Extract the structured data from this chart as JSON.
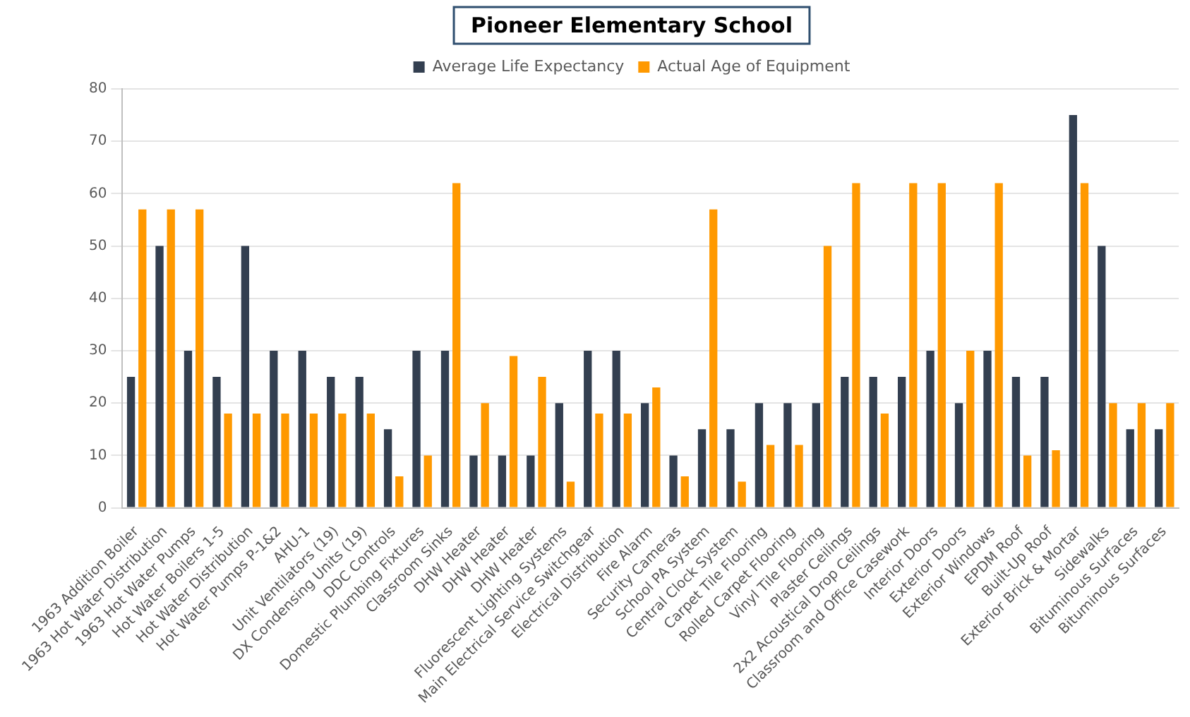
{
  "chart_data": {
    "type": "bar",
    "title": "Pioneer Elementary School",
    "categories": [
      "1963 Addition Boiler",
      "1963 Hot Water Distribution",
      "1963 Hot Water Pumps",
      "Hot Water Boilers 1-5",
      "Hot Water Distribution",
      "Hot Water Pumps P-1&2",
      "AHU-1",
      "Unit Ventilators (19)",
      "DX Condensing Units (19)",
      "DDC Controls",
      "Domestic Plumbing Fixtures",
      "Classroom Sinks",
      "DHW Heater",
      "DHW Heater",
      "DHW Heater",
      "Fluorescent Lighting Systems",
      "Main Electrical Service Switchgear",
      "Electrical Distribution",
      "Fire Alarm",
      "Security Cameras",
      "School PA System",
      "Central Clock System",
      "Carpet Tile Flooring",
      "Rolled Carpet Flooring",
      "Vinyl Tile Flooring",
      "Plaster Ceilings",
      "2x2 Acoustical Drop Ceilings",
      "Classroom and Office Casework",
      "Interior Doors",
      "Exterior Doors",
      "Exterior Windows",
      "EPDM Roof",
      "Built-Up Roof",
      "Exterior Brick & Mortar",
      "Sidewalks",
      "Bituminous Surfaces",
      "Bituminous Surfaces"
    ],
    "series": [
      {
        "name": "Average Life Expectancy",
        "color": "#333f50",
        "values": [
          25,
          50,
          30,
          25,
          50,
          30,
          30,
          25,
          25,
          15,
          30,
          30,
          10,
          10,
          10,
          20,
          30,
          30,
          20,
          10,
          15,
          15,
          20,
          20,
          20,
          25,
          25,
          25,
          30,
          20,
          30,
          25,
          25,
          75,
          50,
          15,
          15
        ]
      },
      {
        "name": "Actual Age of Equipment",
        "color": "#ff9900",
        "values": [
          57,
          57,
          57,
          18,
          18,
          18,
          18,
          18,
          18,
          6,
          10,
          62,
          20,
          29,
          25,
          5,
          18,
          18,
          23,
          6,
          57,
          5,
          12,
          12,
          50,
          62,
          18,
          62,
          62,
          30,
          62,
          10,
          11,
          62,
          20,
          20,
          20
        ]
      }
    ],
    "ylim": [
      0,
      80
    ],
    "yticks": [
      0,
      10,
      20,
      30,
      40,
      50,
      60,
      70,
      80
    ],
    "grid": "y",
    "legend": "top"
  }
}
